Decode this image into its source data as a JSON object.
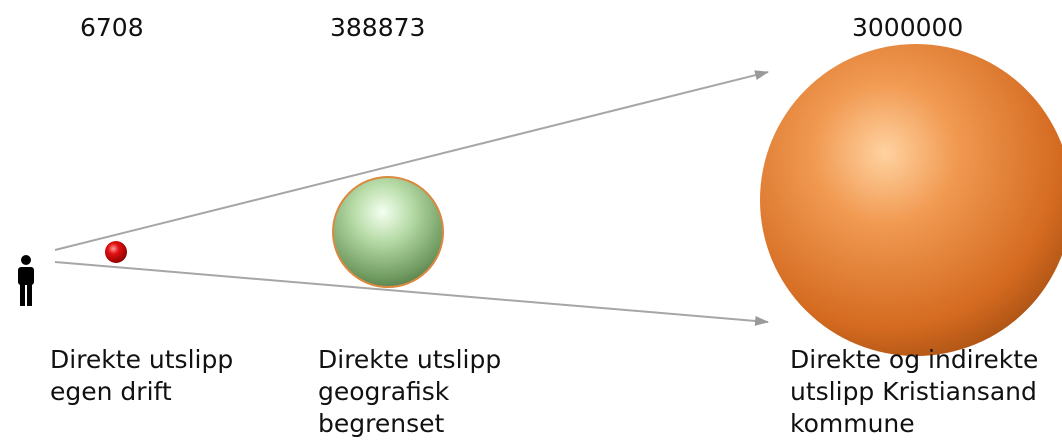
{
  "items": [
    {
      "value": 6708,
      "label": [
        "Direkte utslipp",
        "egen drift"
      ]
    },
    {
      "value": 388873,
      "label": [
        "Direkte utslipp",
        "geografisk",
        "begrenset"
      ]
    },
    {
      "value": 3000000,
      "label": [
        "Direkte og indirekte",
        "utslipp Kristiansand",
        "kommune"
      ]
    }
  ]
}
